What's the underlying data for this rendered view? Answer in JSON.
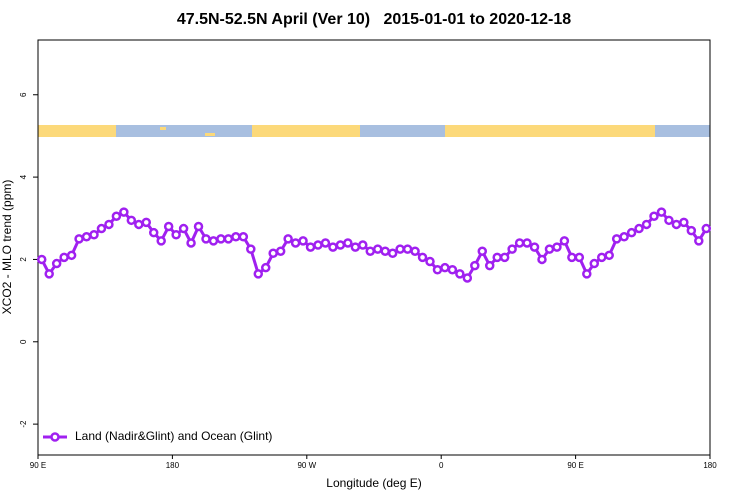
{
  "chart_data": {
    "type": "line",
    "title": "47.5N-52.5N April (Ver 10)   2015-01-01 to 2020-12-18",
    "x_label": "Longitude (deg E)",
    "y_label": "XCO2 - MLO trend (ppm)",
    "x": [
      92.5,
      97.5,
      102.5,
      107.5,
      112.5,
      117.5,
      122.5,
      127.5,
      132.5,
      137.5,
      142.5,
      147.5,
      152.5,
      157.5,
      162.5,
      167.5,
      172.5,
      177.5,
      182.5,
      187.5,
      192.5,
      197.5,
      202.5,
      207.5,
      212.5,
      217.5,
      222.5,
      227.5,
      232.5,
      237.5,
      242.5,
      247.5,
      252.5,
      257.5,
      262.5,
      267.5,
      272.5,
      277.5,
      282.5,
      287.5,
      292.5,
      297.5,
      302.5,
      307.5,
      312.5,
      317.5,
      322.5,
      327.5,
      332.5,
      337.5,
      342.5,
      347.5,
      352.5,
      357.5,
      362.5,
      367.5,
      372.5,
      377.5,
      382.5,
      387.5,
      392.5,
      397.5,
      402.5,
      407.5,
      412.5,
      417.5,
      422.5,
      427.5,
      432.5,
      437.5,
      442.5,
      447.5,
      452.5,
      457.5,
      462.5,
      467.5,
      472.5,
      477.5,
      482.5,
      487.5,
      492.5,
      497.5,
      502.5,
      507.5,
      512.5,
      517.5,
      522.5,
      527.5,
      532.5,
      537.5
    ],
    "series": [
      {
        "name": "Land (Nadir&Glint) and Ocean (Glint)",
        "color": "#a020f0",
        "values": [
          2.0,
          1.65,
          1.9,
          2.05,
          2.1,
          2.5,
          2.55,
          2.6,
          2.75,
          2.85,
          3.05,
          3.15,
          2.95,
          2.85,
          2.9,
          2.65,
          2.45,
          2.8,
          2.6,
          2.75,
          2.4,
          2.8,
          2.5,
          2.45,
          2.5,
          2.5,
          2.55,
          2.55,
          2.25,
          1.65,
          1.8,
          2.15,
          2.2,
          2.5,
          2.4,
          2.45,
          2.3,
          2.35,
          2.4,
          2.3,
          2.35,
          2.4,
          2.3,
          2.35,
          2.2,
          2.25,
          2.2,
          2.15,
          2.25,
          2.25,
          2.2,
          2.05,
          1.95,
          1.75,
          1.8,
          1.75,
          1.65,
          1.55,
          1.85,
          2.2,
          1.85,
          2.05,
          2.05,
          2.25,
          2.4,
          2.4,
          2.3,
          2.0,
          2.25,
          2.3,
          2.45,
          2.05,
          2.05,
          1.65,
          1.9,
          2.05,
          2.1,
          2.5,
          2.55,
          2.65,
          2.75,
          2.85,
          3.05,
          3.15,
          2.95,
          2.85,
          2.9,
          2.7,
          2.45,
          2.75
        ]
      }
    ],
    "xlim": [
      90,
      540
    ],
    "xticks": [
      {
        "value": 90,
        "label": "90 E"
      },
      180,
      {
        "value": 270,
        "label": "90 W"
      },
      {
        "value": 360,
        "label": "0"
      },
      {
        "value": 450,
        "label": "90 E"
      },
      {
        "value": 540,
        "label": "180"
      }
    ],
    "ylim": [
      -2.75,
      7.33
    ],
    "yticks": [
      -2,
      0,
      2,
      4,
      6
    ],
    "legend": "bottom-left"
  }
}
